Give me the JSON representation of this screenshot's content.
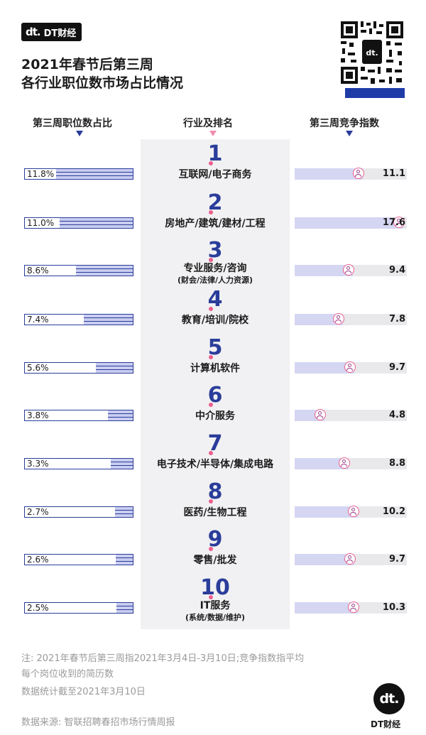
{
  "brand": {
    "logo_mark": "dt.",
    "name": "DT财经"
  },
  "title": {
    "line1": "2021年春节后第三周",
    "line2": "各行业职位数市场占比情况"
  },
  "column_headers": {
    "left": "第三周职位数占比",
    "center": "行业及排名",
    "right": "第三周竞争指数"
  },
  "colors": {
    "accent_blue": "#2a3d9a",
    "accent_pink": "#ec5e8e",
    "bar_fill": "#c9cdf0"
  },
  "chart_data": {
    "type": "bar",
    "title": "2021年春节后第三周各行业职位数市场占比情况",
    "categories": [
      "互联网/电子商务",
      "房地产/建筑/建材/工程",
      "专业服务/咨询",
      "教育/培训/院校",
      "计算机软件",
      "中介服务",
      "电子技术/半导体/集成电路",
      "医药/生物工程",
      "零售/批发",
      "IT服务"
    ],
    "subcategories": [
      "",
      "",
      "(财会/法律/人力资源)",
      "",
      "",
      "",
      "",
      "",
      "",
      "(系统/数据/维护)"
    ],
    "ranks": [
      "1",
      "2",
      "3",
      "4",
      "5",
      "6",
      "7",
      "8",
      "9",
      "10"
    ],
    "series": [
      {
        "name": "第三周职位数占比",
        "values": [
          11.8,
          11.0,
          8.6,
          7.4,
          5.6,
          3.8,
          3.3,
          2.7,
          2.6,
          2.5
        ],
        "labels": [
          "11.8%",
          "11.0%",
          "8.6%",
          "7.4%",
          "5.6%",
          "3.8%",
          "3.3%",
          "2.7%",
          "2.6%",
          "2.5%"
        ]
      },
      {
        "name": "第三周竞争指数",
        "values": [
          11.1,
          17.6,
          9.4,
          7.8,
          9.7,
          4.8,
          8.8,
          10.2,
          9.7,
          10.3
        ],
        "labels": [
          "11.1",
          "17.6",
          "9.4",
          "7.8",
          "9.7",
          "4.8",
          "8.8",
          "10.2",
          "9.7",
          "10.3"
        ]
      }
    ]
  },
  "notes": {
    "line1": "注: 2021年春节后第三周指2021年3月4日-3月10日;竞争指数指平均",
    "line2": "每个岗位收到的简历数",
    "line3": "数据统计截至2021年3月10日",
    "source": "数据来源: 智联招聘春招市场行情周报"
  }
}
